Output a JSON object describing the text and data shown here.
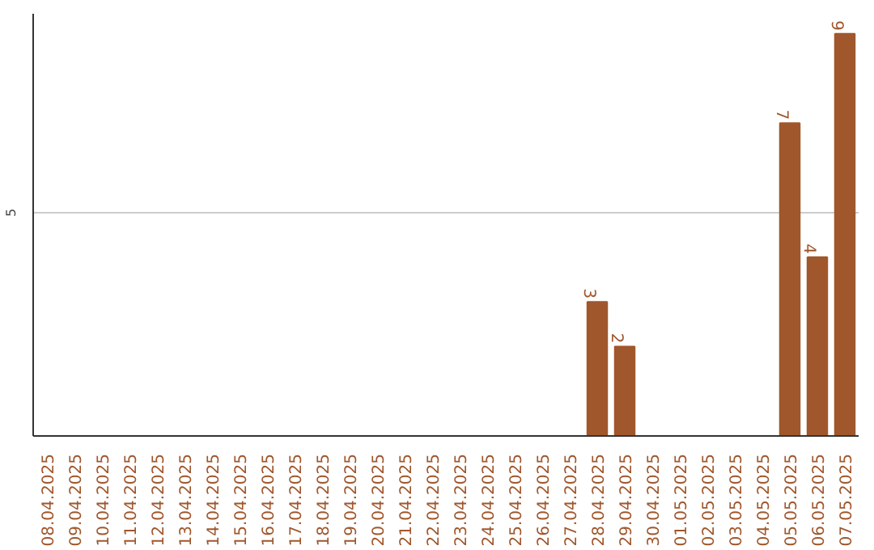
{
  "chart_data": {
    "type": "bar",
    "categories": [
      "08.04.2025",
      "09.04.2025",
      "10.04.2025",
      "11.04.2025",
      "12.04.2025",
      "13.04.2025",
      "14.04.2025",
      "15.04.2025",
      "16.04.2025",
      "17.04.2025",
      "18.04.2025",
      "19.04.2025",
      "20.04.2025",
      "21.04.2025",
      "22.04.2025",
      "23.04.2025",
      "24.04.2025",
      "25.04.2025",
      "26.04.2025",
      "27.04.2025",
      "28.04.2025",
      "29.04.2025",
      "30.04.2025",
      "01.05.2025",
      "02.05.2025",
      "03.05.2025",
      "04.05.2025",
      "05.05.2025",
      "06.05.2025",
      "07.05.2025"
    ],
    "values": [
      null,
      null,
      null,
      null,
      null,
      null,
      null,
      null,
      null,
      null,
      null,
      null,
      null,
      null,
      null,
      null,
      null,
      null,
      null,
      null,
      3,
      2,
      null,
      null,
      null,
      null,
      null,
      7,
      4,
      9
    ],
    "data_labels": true,
    "color": "#a0572c",
    "ylim": [
      0,
      9.45
    ],
    "yticks": [
      {
        "value": 0,
        "label": null
      },
      {
        "value": 5,
        "label": "5"
      }
    ],
    "grid": "y"
  }
}
